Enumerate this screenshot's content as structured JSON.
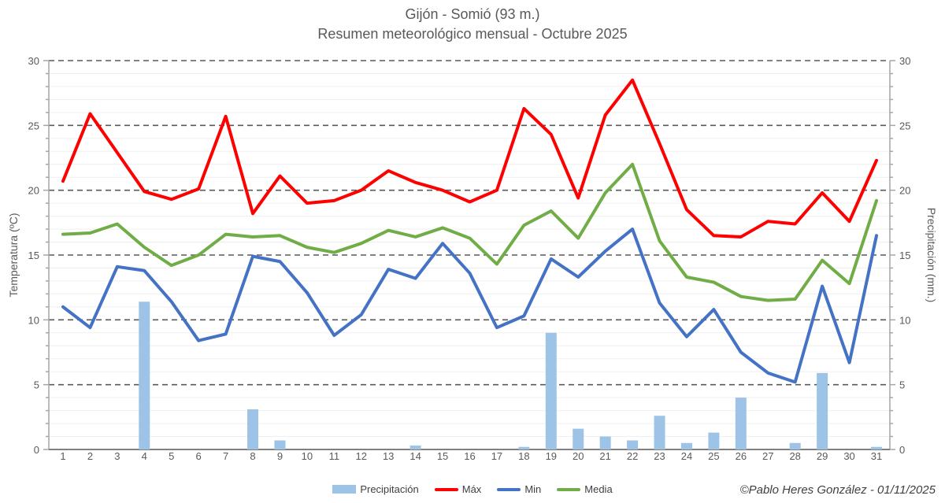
{
  "title": "Gijón - Somió (93 m.)",
  "subtitle": "Resumen meteorológico mensual - Octubre 2025",
  "credit": "©Pablo Heres González - 01/11/2025",
  "legend": {
    "precipitation_label": "Precipitación",
    "max_label": "Máx",
    "min_label": "Min",
    "media_label": "Media"
  },
  "colors": {
    "precipitation": "#9DC3E6",
    "max": "#FF0000",
    "min": "#4472C4",
    "media": "#70AD47",
    "axis_text": "#595959",
    "major_grid": "#595959",
    "minor_grid": "#EFEFEF",
    "axis_line": "#A6A6A6",
    "zero_line": "#808080"
  },
  "chart_data": {
    "type": "combo",
    "title": "Gijón - Somió (93 m.) — Resumen meteorológico mensual - Octubre 2025",
    "x": [
      1,
      2,
      3,
      4,
      5,
      6,
      7,
      8,
      9,
      10,
      11,
      12,
      13,
      14,
      15,
      16,
      17,
      18,
      19,
      20,
      21,
      22,
      23,
      24,
      25,
      26,
      27,
      28,
      29,
      30,
      31
    ],
    "xlabel": "",
    "y_left_label": "Temperatura (ºC)",
    "y_right_label": "Precipitación (mm.)",
    "y_left_range": [
      0,
      30
    ],
    "y_right_range": [
      0,
      30
    ],
    "major_tick_step": 5,
    "minor_tick_step": 1,
    "grid": "horizontal-only",
    "legend_position": "bottom-center",
    "series": [
      {
        "name": "Precipitación",
        "type": "bar",
        "axis": "right",
        "color_key": "precipitation",
        "values": [
          0,
          0,
          0,
          11.4,
          0,
          0,
          0,
          3.1,
          0.7,
          0,
          0,
          0,
          0,
          0.3,
          0,
          0,
          0,
          0.2,
          9.0,
          1.6,
          1.0,
          0.7,
          2.6,
          0.5,
          1.3,
          4.0,
          0,
          0.5,
          5.9,
          0,
          0.2
        ]
      },
      {
        "name": "Máx",
        "type": "line",
        "axis": "left",
        "color_key": "max",
        "values": [
          20.7,
          25.9,
          22.9,
          19.9,
          19.3,
          20.1,
          25.7,
          18.2,
          21.1,
          19.0,
          19.2,
          20.0,
          21.5,
          20.6,
          20.0,
          19.1,
          20.0,
          26.3,
          24.3,
          19.4,
          25.8,
          28.5,
          23.6,
          18.5,
          16.5,
          16.4,
          17.6,
          17.4,
          19.8,
          17.6,
          22.3
        ]
      },
      {
        "name": "Min",
        "type": "line",
        "axis": "left",
        "color_key": "min",
        "values": [
          11.0,
          9.4,
          14.1,
          13.8,
          11.4,
          8.4,
          8.9,
          14.9,
          14.5,
          12.1,
          8.8,
          10.4,
          13.9,
          13.2,
          15.9,
          13.6,
          9.4,
          10.3,
          14.7,
          13.3,
          15.3,
          17.0,
          11.3,
          8.7,
          10.8,
          7.5,
          5.9,
          5.2,
          12.6,
          6.7,
          16.5
        ]
      },
      {
        "name": "Media",
        "type": "line",
        "axis": "left",
        "color_key": "media",
        "values": [
          16.6,
          16.7,
          17.4,
          15.6,
          14.2,
          15.0,
          16.6,
          16.4,
          16.5,
          15.6,
          15.2,
          15.9,
          16.9,
          16.4,
          17.1,
          16.3,
          14.3,
          17.3,
          18.4,
          16.3,
          19.8,
          22.0,
          16.1,
          13.3,
          12.9,
          11.8,
          11.5,
          11.6,
          14.6,
          12.8,
          19.2
        ]
      }
    ]
  }
}
